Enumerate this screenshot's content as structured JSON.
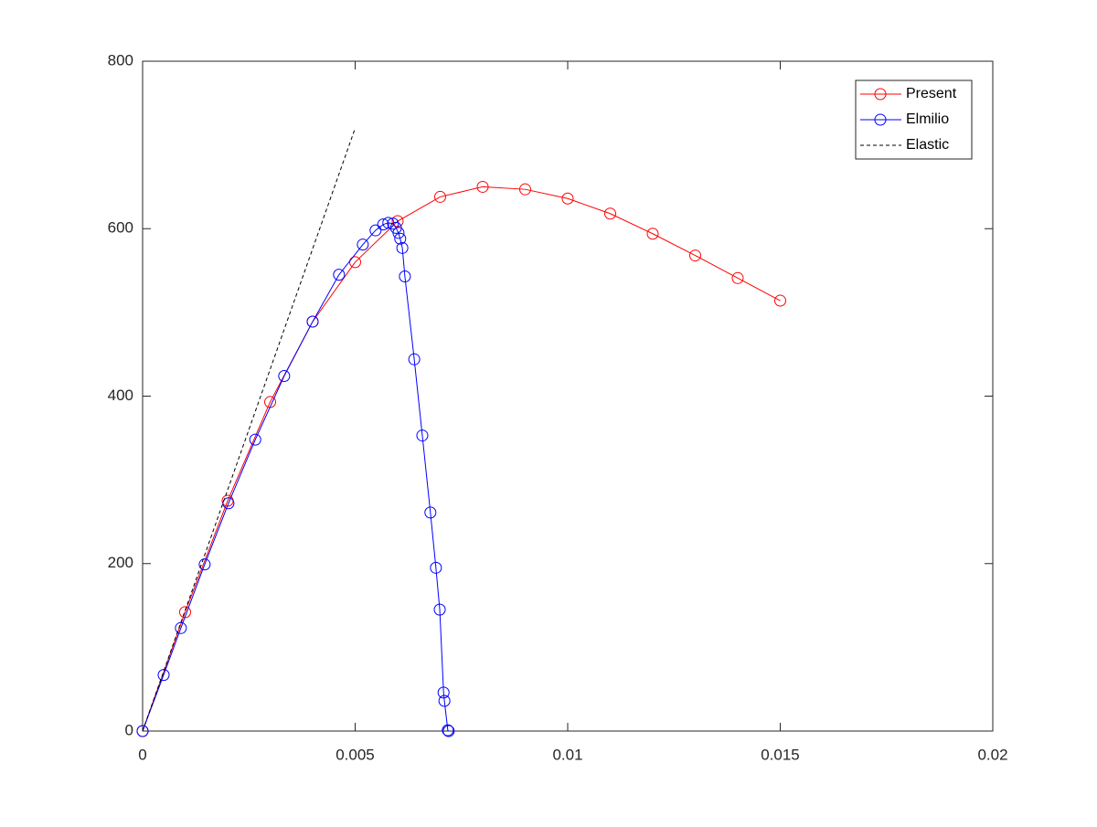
{
  "chart_data": {
    "type": "line",
    "xlim": [
      0,
      0.02
    ],
    "xticks": [
      0,
      0.005,
      0.01,
      0.015,
      0.02
    ],
    "ylim": [
      0,
      800
    ],
    "yticks": [
      0,
      200,
      400,
      600,
      800
    ],
    "legend": "northeast",
    "box": true,
    "series": [
      {
        "name": "Present",
        "color": "#ff0000",
        "marker": "circle",
        "line_style": "solid",
        "x": [
          0,
          0.001,
          0.002,
          0.003,
          0.004,
          0.005,
          0.006,
          0.007,
          0.008,
          0.009,
          0.01,
          0.011,
          0.012,
          0.013,
          0.014,
          0.015
        ],
        "values": [
          0,
          142,
          275,
          393,
          489,
          560,
          609,
          638,
          650,
          647,
          636,
          618,
          594,
          568,
          541,
          514
        ]
      },
      {
        "name": "Elmilio",
        "color": "#0000ff",
        "marker": "circle",
        "line_style": "solid",
        "x": [
          0,
          0.000495,
          0.0009,
          0.00146,
          0.00202,
          0.00265,
          0.00333,
          0.004,
          0.00462,
          0.00518,
          0.00548,
          0.00566,
          0.00578,
          0.00589,
          0.00596,
          0.00602,
          0.00606,
          0.00611,
          0.00617,
          0.00639,
          0.00658,
          0.00677,
          0.0069,
          0.00699,
          0.00708,
          0.0071,
          0.00718,
          0.0072
        ],
        "values": [
          0,
          67,
          123,
          199,
          272,
          348,
          424,
          489,
          545,
          581,
          598,
          605,
          607,
          606,
          601,
          595,
          588,
          577,
          543,
          444,
          353,
          261,
          195,
          145,
          46,
          36,
          1,
          0
        ]
      },
      {
        "name": "Elastic",
        "color": "#000000",
        "marker": "none",
        "line_style": "dashed",
        "x": [
          0,
          0.005
        ],
        "values": [
          0,
          720
        ]
      }
    ]
  }
}
